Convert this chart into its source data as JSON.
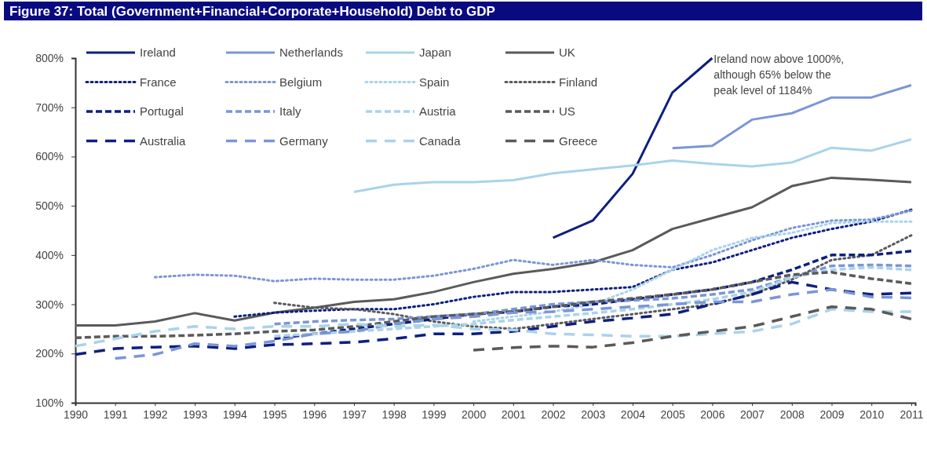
{
  "chart_data": {
    "type": "line",
    "title": "Figure 37: Total (Government+Financial+Corporate+Household) Debt to GDP",
    "x": [
      1990,
      1991,
      1992,
      1993,
      1994,
      1995,
      1996,
      1997,
      1998,
      1999,
      2000,
      2001,
      2002,
      2003,
      2004,
      2005,
      2006,
      2007,
      2008,
      2009,
      2010,
      2011
    ],
    "xlim": [
      1990,
      2011.1
    ],
    "xticks": [
      1990,
      1991,
      1992,
      1993,
      1994,
      1995,
      1996,
      1997,
      1998,
      1999,
      2000,
      2001,
      2002,
      2003,
      2004,
      2005,
      2006,
      2007,
      2008,
      2009,
      2010,
      2011
    ],
    "ylim": [
      100,
      800
    ],
    "yticks": [
      {
        "value": 100,
        "label": "100%"
      },
      {
        "value": 200,
        "label": "200%"
      },
      {
        "value": 300,
        "label": "300%"
      },
      {
        "value": 400,
        "label": "400%"
      },
      {
        "value": 500,
        "label": "500%"
      },
      {
        "value": 600,
        "label": "600%"
      },
      {
        "value": 700,
        "label": "700%"
      },
      {
        "value": 800,
        "label": "800%"
      }
    ],
    "grid": false,
    "legend": "top left",
    "marker": "none",
    "annotations": [
      {
        "text": "Ireland now above 1000%, although 65% below the peak level of 1184%",
        "x": 2006,
        "y": 800
      }
    ],
    "series": [
      {
        "name": "Ireland",
        "color": "#0d1f80",
        "line_style": "solid",
        "values": [
          null,
          null,
          null,
          null,
          null,
          null,
          null,
          null,
          null,
          null,
          null,
          null,
          435,
          470,
          565,
          730,
          800,
          null,
          null,
          null,
          null,
          null
        ]
      },
      {
        "name": "Netherlands",
        "color": "#7b96d6",
        "line_style": "solid",
        "values": [
          null,
          null,
          null,
          null,
          null,
          null,
          null,
          null,
          null,
          null,
          null,
          null,
          null,
          null,
          null,
          617,
          622,
          675,
          688,
          720,
          720,
          745
        ]
      },
      {
        "name": "Japan",
        "color": "#a9d3ea",
        "line_style": "solid",
        "values": [
          null,
          null,
          null,
          null,
          null,
          null,
          null,
          528,
          543,
          548,
          548,
          552,
          566,
          574,
          582,
          592,
          585,
          580,
          588,
          618,
          612,
          635
        ]
      },
      {
        "name": "UK",
        "color": "#5a5a5a",
        "line_style": "solid",
        "values": [
          257,
          257,
          265,
          282,
          267,
          283,
          293,
          305,
          310,
          325,
          345,
          362,
          372,
          385,
          410,
          453,
          475,
          497,
          540,
          557,
          553,
          548
        ]
      },
      {
        "name": "France",
        "color": "#0d1f80",
        "line_style": "dotted",
        "values": [
          null,
          null,
          null,
          null,
          275,
          283,
          287,
          290,
          290,
          300,
          315,
          325,
          325,
          330,
          335,
          370,
          385,
          410,
          435,
          453,
          468,
          492
        ]
      },
      {
        "name": "Belgium",
        "color": "#7b96d6",
        "line_style": "dotted",
        "values": [
          null,
          null,
          355,
          360,
          358,
          347,
          352,
          350,
          350,
          358,
          372,
          390,
          380,
          390,
          380,
          375,
          400,
          430,
          455,
          470,
          472,
          490
        ]
      },
      {
        "name": "Spain",
        "color": "#a9d3ea",
        "line_style": "dotted",
        "values": [
          null,
          null,
          null,
          null,
          null,
          null,
          null,
          null,
          null,
          null,
          265,
          275,
          285,
          300,
          330,
          370,
          410,
          435,
          445,
          465,
          468,
          468
        ]
      },
      {
        "name": "Finland",
        "color": "#5a5a5a",
        "line_style": "dotted",
        "values": [
          null,
          null,
          null,
          null,
          null,
          303,
          293,
          290,
          280,
          265,
          255,
          250,
          260,
          270,
          280,
          290,
          300,
          320,
          350,
          390,
          400,
          440
        ]
      },
      {
        "name": "Portugal",
        "color": "#0d1f80",
        "line_style": "dashed",
        "values": [
          null,
          null,
          null,
          null,
          null,
          230,
          240,
          250,
          260,
          270,
          280,
          285,
          295,
          300,
          310,
          320,
          330,
          345,
          370,
          400,
          400,
          408
        ]
      },
      {
        "name": "Italy",
        "color": "#7b96d6",
        "line_style": "dashed",
        "values": [
          null,
          null,
          null,
          null,
          null,
          260,
          265,
          268,
          270,
          275,
          280,
          290,
          300,
          305,
          308,
          312,
          320,
          330,
          355,
          378,
          380,
          378
        ]
      },
      {
        "name": "Austria",
        "color": "#a9d3ea",
        "line_style": "dashed",
        "values": [
          null,
          null,
          null,
          null,
          null,
          235,
          240,
          245,
          250,
          255,
          260,
          268,
          275,
          282,
          290,
          300,
          310,
          325,
          355,
          370,
          375,
          370
        ]
      },
      {
        "name": "US",
        "color": "#5a5a5a",
        "line_style": "dashed",
        "values": [
          232,
          235,
          235,
          237,
          240,
          245,
          248,
          255,
          265,
          275,
          280,
          285,
          295,
          305,
          312,
          320,
          330,
          345,
          360,
          365,
          352,
          342
        ]
      },
      {
        "name": "Australia",
        "color": "#0d1f80",
        "line_style": "dashed",
        "values": [
          198,
          210,
          213,
          215,
          210,
          218,
          220,
          223,
          230,
          240,
          240,
          245,
          255,
          265,
          272,
          280,
          300,
          320,
          345,
          330,
          320,
          323
        ]
      },
      {
        "name": "Germany",
        "color": "#7b96d6",
        "line_style": "dashed",
        "values": [
          null,
          190,
          198,
          220,
          215,
          225,
          240,
          245,
          260,
          270,
          275,
          283,
          285,
          290,
          295,
          300,
          305,
          305,
          320,
          330,
          315,
          313
        ]
      },
      {
        "name": "Canada",
        "color": "#a9d3ea",
        "line_style": "dashed",
        "values": [
          215,
          230,
          245,
          255,
          250,
          255,
          255,
          260,
          255,
          258,
          250,
          248,
          240,
          238,
          235,
          235,
          240,
          245,
          260,
          290,
          285,
          285
        ]
      },
      {
        "name": "Greece",
        "color": "#5a5a5a",
        "line_style": "dashed",
        "values": [
          null,
          null,
          null,
          null,
          null,
          null,
          null,
          null,
          null,
          null,
          207,
          212,
          215,
          213,
          222,
          235,
          245,
          255,
          275,
          295,
          290,
          270
        ]
      }
    ]
  }
}
